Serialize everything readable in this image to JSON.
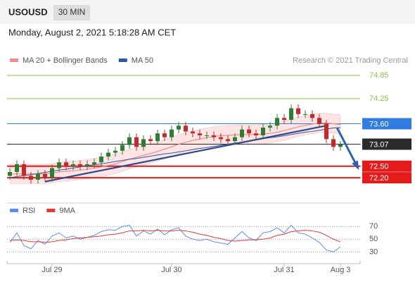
{
  "chart_data": {
    "type": "candlestick",
    "symbol": "USOUSD",
    "timeframe": "30 MIN",
    "timestamp": "Monday, August 2, 2021 5:18:28 AM CET",
    "credit": "Research © 2021 Trading Central",
    "categories": [
      null,
      null,
      null,
      null,
      null,
      null,
      "Jul 29",
      null,
      null,
      null,
      null,
      null,
      null,
      null,
      null,
      null,
      null,
      null,
      null,
      null,
      null,
      null,
      null,
      "Jul 30",
      null,
      null,
      null,
      null,
      null,
      null,
      null,
      null,
      null,
      null,
      null,
      null,
      null,
      null,
      null,
      "Jul 31",
      null,
      null,
      null,
      null,
      null,
      null,
      null,
      "Aug 3"
    ],
    "open": [
      72.25,
      72.35,
      72.55,
      72.25,
      72.15,
      72.3,
      72.2,
      72.45,
      72.6,
      72.5,
      72.55,
      72.5,
      72.55,
      72.6,
      72.75,
      72.85,
      72.9,
      73.05,
      73.25,
      73.0,
      73.2,
      73.15,
      73.35,
      73.25,
      73.45,
      73.55,
      73.4,
      73.35,
      73.3,
      73.3,
      73.25,
      73.2,
      73.15,
      73.25,
      73.45,
      73.35,
      73.3,
      73.5,
      73.55,
      73.75,
      73.7,
      74.0,
      73.85,
      73.85,
      73.75,
      73.6,
      73.2,
      73.0
    ],
    "high": [
      72.45,
      72.65,
      72.65,
      72.35,
      72.4,
      72.4,
      72.55,
      72.7,
      72.7,
      72.65,
      72.65,
      72.65,
      72.7,
      72.85,
      72.95,
      73.0,
      73.15,
      73.35,
      73.35,
      73.3,
      73.3,
      73.45,
      73.45,
      73.55,
      73.65,
      73.65,
      73.5,
      73.45,
      73.4,
      73.4,
      73.35,
      73.3,
      73.35,
      73.55,
      73.55,
      73.45,
      73.6,
      73.65,
      73.85,
      73.85,
      74.1,
      74.1,
      73.95,
      73.95,
      73.85,
      73.7,
      73.3,
      73.15
    ],
    "low": [
      72.15,
      72.25,
      72.15,
      72.05,
      72.05,
      72.1,
      72.1,
      72.35,
      72.4,
      72.4,
      72.4,
      72.4,
      72.45,
      72.5,
      72.65,
      72.75,
      72.8,
      72.95,
      72.9,
      72.9,
      73.05,
      73.05,
      73.15,
      73.15,
      73.35,
      73.3,
      73.25,
      73.2,
      73.2,
      73.15,
      73.1,
      73.05,
      73.05,
      73.15,
      73.25,
      73.2,
      73.2,
      73.4,
      73.45,
      73.6,
      73.6,
      73.75,
      73.75,
      73.65,
      73.5,
      73.1,
      72.9,
      72.9
    ],
    "close": [
      72.35,
      72.55,
      72.25,
      72.15,
      72.3,
      72.2,
      72.45,
      72.6,
      72.5,
      72.55,
      72.5,
      72.55,
      72.6,
      72.75,
      72.85,
      72.9,
      73.05,
      73.25,
      73.0,
      73.2,
      73.15,
      73.35,
      73.25,
      73.45,
      73.55,
      73.4,
      73.35,
      73.3,
      73.3,
      73.25,
      73.2,
      73.15,
      73.25,
      73.45,
      73.35,
      73.3,
      73.5,
      73.55,
      73.75,
      73.7,
      74.0,
      73.85,
      73.85,
      73.75,
      73.6,
      73.2,
      73.0,
      73.07
    ],
    "up_color": "#2e7d32",
    "down_color": "#c62828",
    "series": [
      {
        "name": "MA 20 + Bollinger Bands",
        "color": "#f28b8b",
        "values": [
          72.3,
          72.3,
          72.3,
          72.3,
          72.3,
          72.3,
          72.32,
          72.35,
          72.37,
          72.38,
          72.4,
          72.42,
          72.45,
          72.48,
          72.52,
          72.56,
          72.62,
          72.68,
          72.73,
          72.78,
          72.83,
          72.88,
          72.94,
          73.0,
          73.07,
          73.12,
          73.17,
          73.2,
          73.24,
          73.27,
          73.29,
          73.3,
          73.31,
          73.32,
          73.32,
          73.32,
          73.33,
          73.35,
          73.38,
          73.42,
          73.47,
          73.52,
          73.56,
          73.59,
          73.62,
          73.62,
          73.6,
          73.58
        ],
        "upper": [
          72.55,
          72.55,
          72.55,
          72.55,
          72.55,
          72.55,
          72.57,
          72.6,
          72.62,
          72.63,
          72.65,
          72.67,
          72.7,
          72.73,
          72.77,
          72.81,
          72.87,
          72.93,
          72.98,
          73.03,
          73.08,
          73.13,
          73.19,
          73.25,
          73.32,
          73.37,
          73.42,
          73.45,
          73.49,
          73.52,
          73.54,
          73.55,
          73.56,
          73.57,
          73.57,
          73.57,
          73.58,
          73.6,
          73.63,
          73.67,
          73.72,
          73.77,
          73.81,
          73.84,
          73.87,
          73.87,
          73.85,
          73.83
        ],
        "lower": [
          72.05,
          72.05,
          72.05,
          72.05,
          72.05,
          72.05,
          72.07,
          72.1,
          72.12,
          72.13,
          72.15,
          72.17,
          72.2,
          72.23,
          72.27,
          72.31,
          72.37,
          72.43,
          72.48,
          72.53,
          72.58,
          72.63,
          72.69,
          72.75,
          72.82,
          72.87,
          72.92,
          72.95,
          72.99,
          73.02,
          73.04,
          73.05,
          73.06,
          73.07,
          73.07,
          73.07,
          73.08,
          73.1,
          73.13,
          73.17,
          73.22,
          73.27,
          73.31,
          73.34,
          73.37,
          73.37,
          73.35,
          73.33
        ]
      },
      {
        "name": "MA 50",
        "color": "#2c5aa0",
        "values": [
          72.2,
          72.23,
          72.26,
          72.28,
          72.31,
          72.34,
          72.37,
          72.4,
          72.42,
          72.45,
          72.48,
          72.51,
          72.54,
          72.56,
          72.59,
          72.62,
          72.65,
          72.68,
          72.7,
          72.73,
          72.76,
          72.79,
          72.82,
          72.84,
          72.87,
          72.9,
          72.93,
          72.96,
          72.98,
          73.01,
          73.04,
          73.07,
          73.1,
          73.12,
          73.15,
          73.18,
          73.21,
          73.24,
          73.26,
          73.29,
          73.32,
          73.35,
          73.38,
          73.4,
          73.43,
          73.46,
          73.49,
          73.5
        ]
      }
    ],
    "trendline": {
      "color": "#2d4a8a",
      "x": [
        5,
        45
      ],
      "y": [
        72.1,
        73.55
      ]
    },
    "forecast": {
      "color": "#2a63b0",
      "x": [
        46.5,
        49.5
      ],
      "y": [
        73.5,
        72.45
      ]
    },
    "levels": [
      {
        "value": 74.85,
        "label": "74.85",
        "color": "#8bc34a",
        "style": "text"
      },
      {
        "value": 74.25,
        "label": "74.25",
        "color": "#8bc34a",
        "style": "text"
      },
      {
        "value": 73.6,
        "label": "73.60",
        "color": "#2f7de1",
        "style": "box"
      },
      {
        "value": 73.07,
        "label": "73.07",
        "color": "#2b2b2b",
        "style": "box"
      },
      {
        "value": 72.5,
        "label": "72.50",
        "color": "#e31b1b",
        "style": "box"
      },
      {
        "value": 72.2,
        "label": "72.20",
        "color": "#e31b1b",
        "style": "box"
      }
    ],
    "ylim": [
      71.6,
      75.07
    ],
    "indicator": {
      "type": "line",
      "ylim": [
        16,
        88
      ],
      "yticks": [
        70,
        50,
        30
      ],
      "series": [
        {
          "name": "RSI",
          "color": "#5b8def",
          "values": [
            45,
            60,
            40,
            35,
            48,
            42,
            55,
            60,
            52,
            55,
            50,
            53,
            56,
            62,
            65,
            64,
            70,
            72,
            55,
            63,
            58,
            66,
            57,
            65,
            68,
            55,
            50,
            48,
            50,
            46,
            44,
            42,
            52,
            62,
            52,
            48,
            60,
            62,
            68,
            60,
            72,
            60,
            58,
            52,
            45,
            33,
            30,
            38
          ]
        },
        {
          "name": "9MA",
          "color": "#e53935",
          "values": [
            48,
            49,
            48,
            46,
            46,
            45,
            46,
            48,
            49,
            51,
            52,
            53,
            54,
            55,
            57,
            58,
            60,
            63,
            63,
            64,
            63,
            64,
            63,
            63,
            64,
            63,
            61,
            58,
            56,
            53,
            51,
            48,
            47,
            48,
            49,
            49,
            50,
            52,
            56,
            58,
            62,
            63,
            64,
            63,
            61,
            56,
            50,
            46
          ]
        }
      ]
    }
  }
}
